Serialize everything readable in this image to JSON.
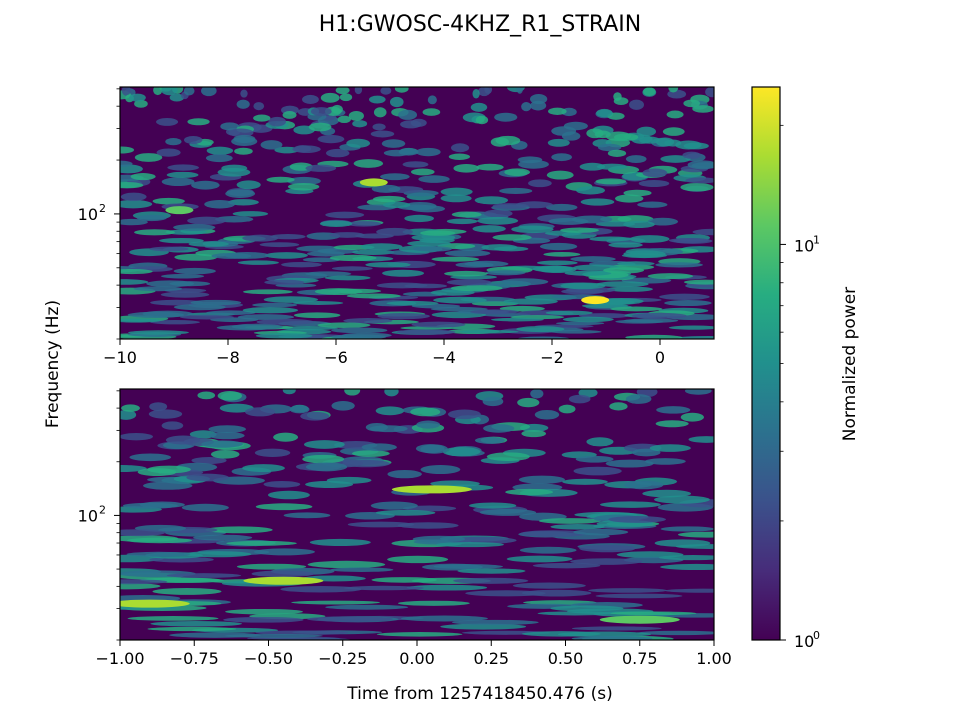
{
  "figure": {
    "title": "H1:GWOSC-4KHZ_R1_STRAIN"
  },
  "chart_data": [
    {
      "type": "heatmap",
      "panel": "top",
      "description": "Q-transform spectrogram, long window",
      "xlim": [
        -10,
        1
      ],
      "ylim_hz": [
        20,
        512
      ],
      "y_scale": "log",
      "x_ticks": [
        -10,
        -8,
        -6,
        -4,
        -2,
        0
      ],
      "x_tick_labels": [
        "−10",
        "−8",
        "−6",
        "−4",
        "−2",
        "0"
      ],
      "y_ticks": [
        100
      ],
      "y_tick_labels": [
        "10",
        "2"
      ],
      "ylabel": "Frequency (Hz)",
      "xlabel": "",
      "value_range": [
        1,
        25
      ],
      "notable_features": [
        {
          "t": -1.2,
          "f_hz": 33,
          "power": 22
        },
        {
          "t": -5.3,
          "f_hz": 150,
          "power": 14
        },
        {
          "t": -8.9,
          "f_hz": 105,
          "power": 13
        }
      ]
    },
    {
      "type": "heatmap",
      "panel": "bottom",
      "description": "Q-transform spectrogram, zoomed window",
      "xlim": [
        -1,
        1
      ],
      "ylim_hz": [
        20,
        512
      ],
      "y_scale": "log",
      "x_ticks": [
        -1,
        -0.75,
        -0.5,
        -0.25,
        0,
        0.25,
        0.5,
        0.75,
        1
      ],
      "x_tick_labels": [
        "−1.00",
        "−0.75",
        "−0.50",
        "−0.25",
        "0.00",
        "0.25",
        "0.50",
        "0.75",
        "1.00"
      ],
      "y_ticks": [
        100
      ],
      "y_tick_labels": [
        "10",
        "2"
      ],
      "xlabel": "Time from 1257418450.476 (s)",
      "value_range": [
        1,
        25
      ],
      "notable_features": [
        {
          "t": -0.9,
          "f_hz": 32,
          "power": 20
        },
        {
          "t": -0.45,
          "f_hz": 43,
          "power": 18
        },
        {
          "t": 0.05,
          "f_hz": 140,
          "power": 14
        },
        {
          "t": 0.75,
          "f_hz": 26,
          "power": 13
        }
      ]
    }
  ],
  "colorbar": {
    "label": "Normalized power",
    "scale": "log",
    "range": [
      1,
      25
    ],
    "colormap": "viridis",
    "ticks": [
      {
        "value": 1,
        "base": "10",
        "exp": "0"
      },
      {
        "value": 10,
        "base": "10",
        "exp": "1"
      }
    ],
    "colors": [
      "#440154",
      "#472c7a",
      "#3b518b",
      "#2c718e",
      "#21908d",
      "#27ad81",
      "#5cc863",
      "#aadc32",
      "#fde725"
    ]
  }
}
